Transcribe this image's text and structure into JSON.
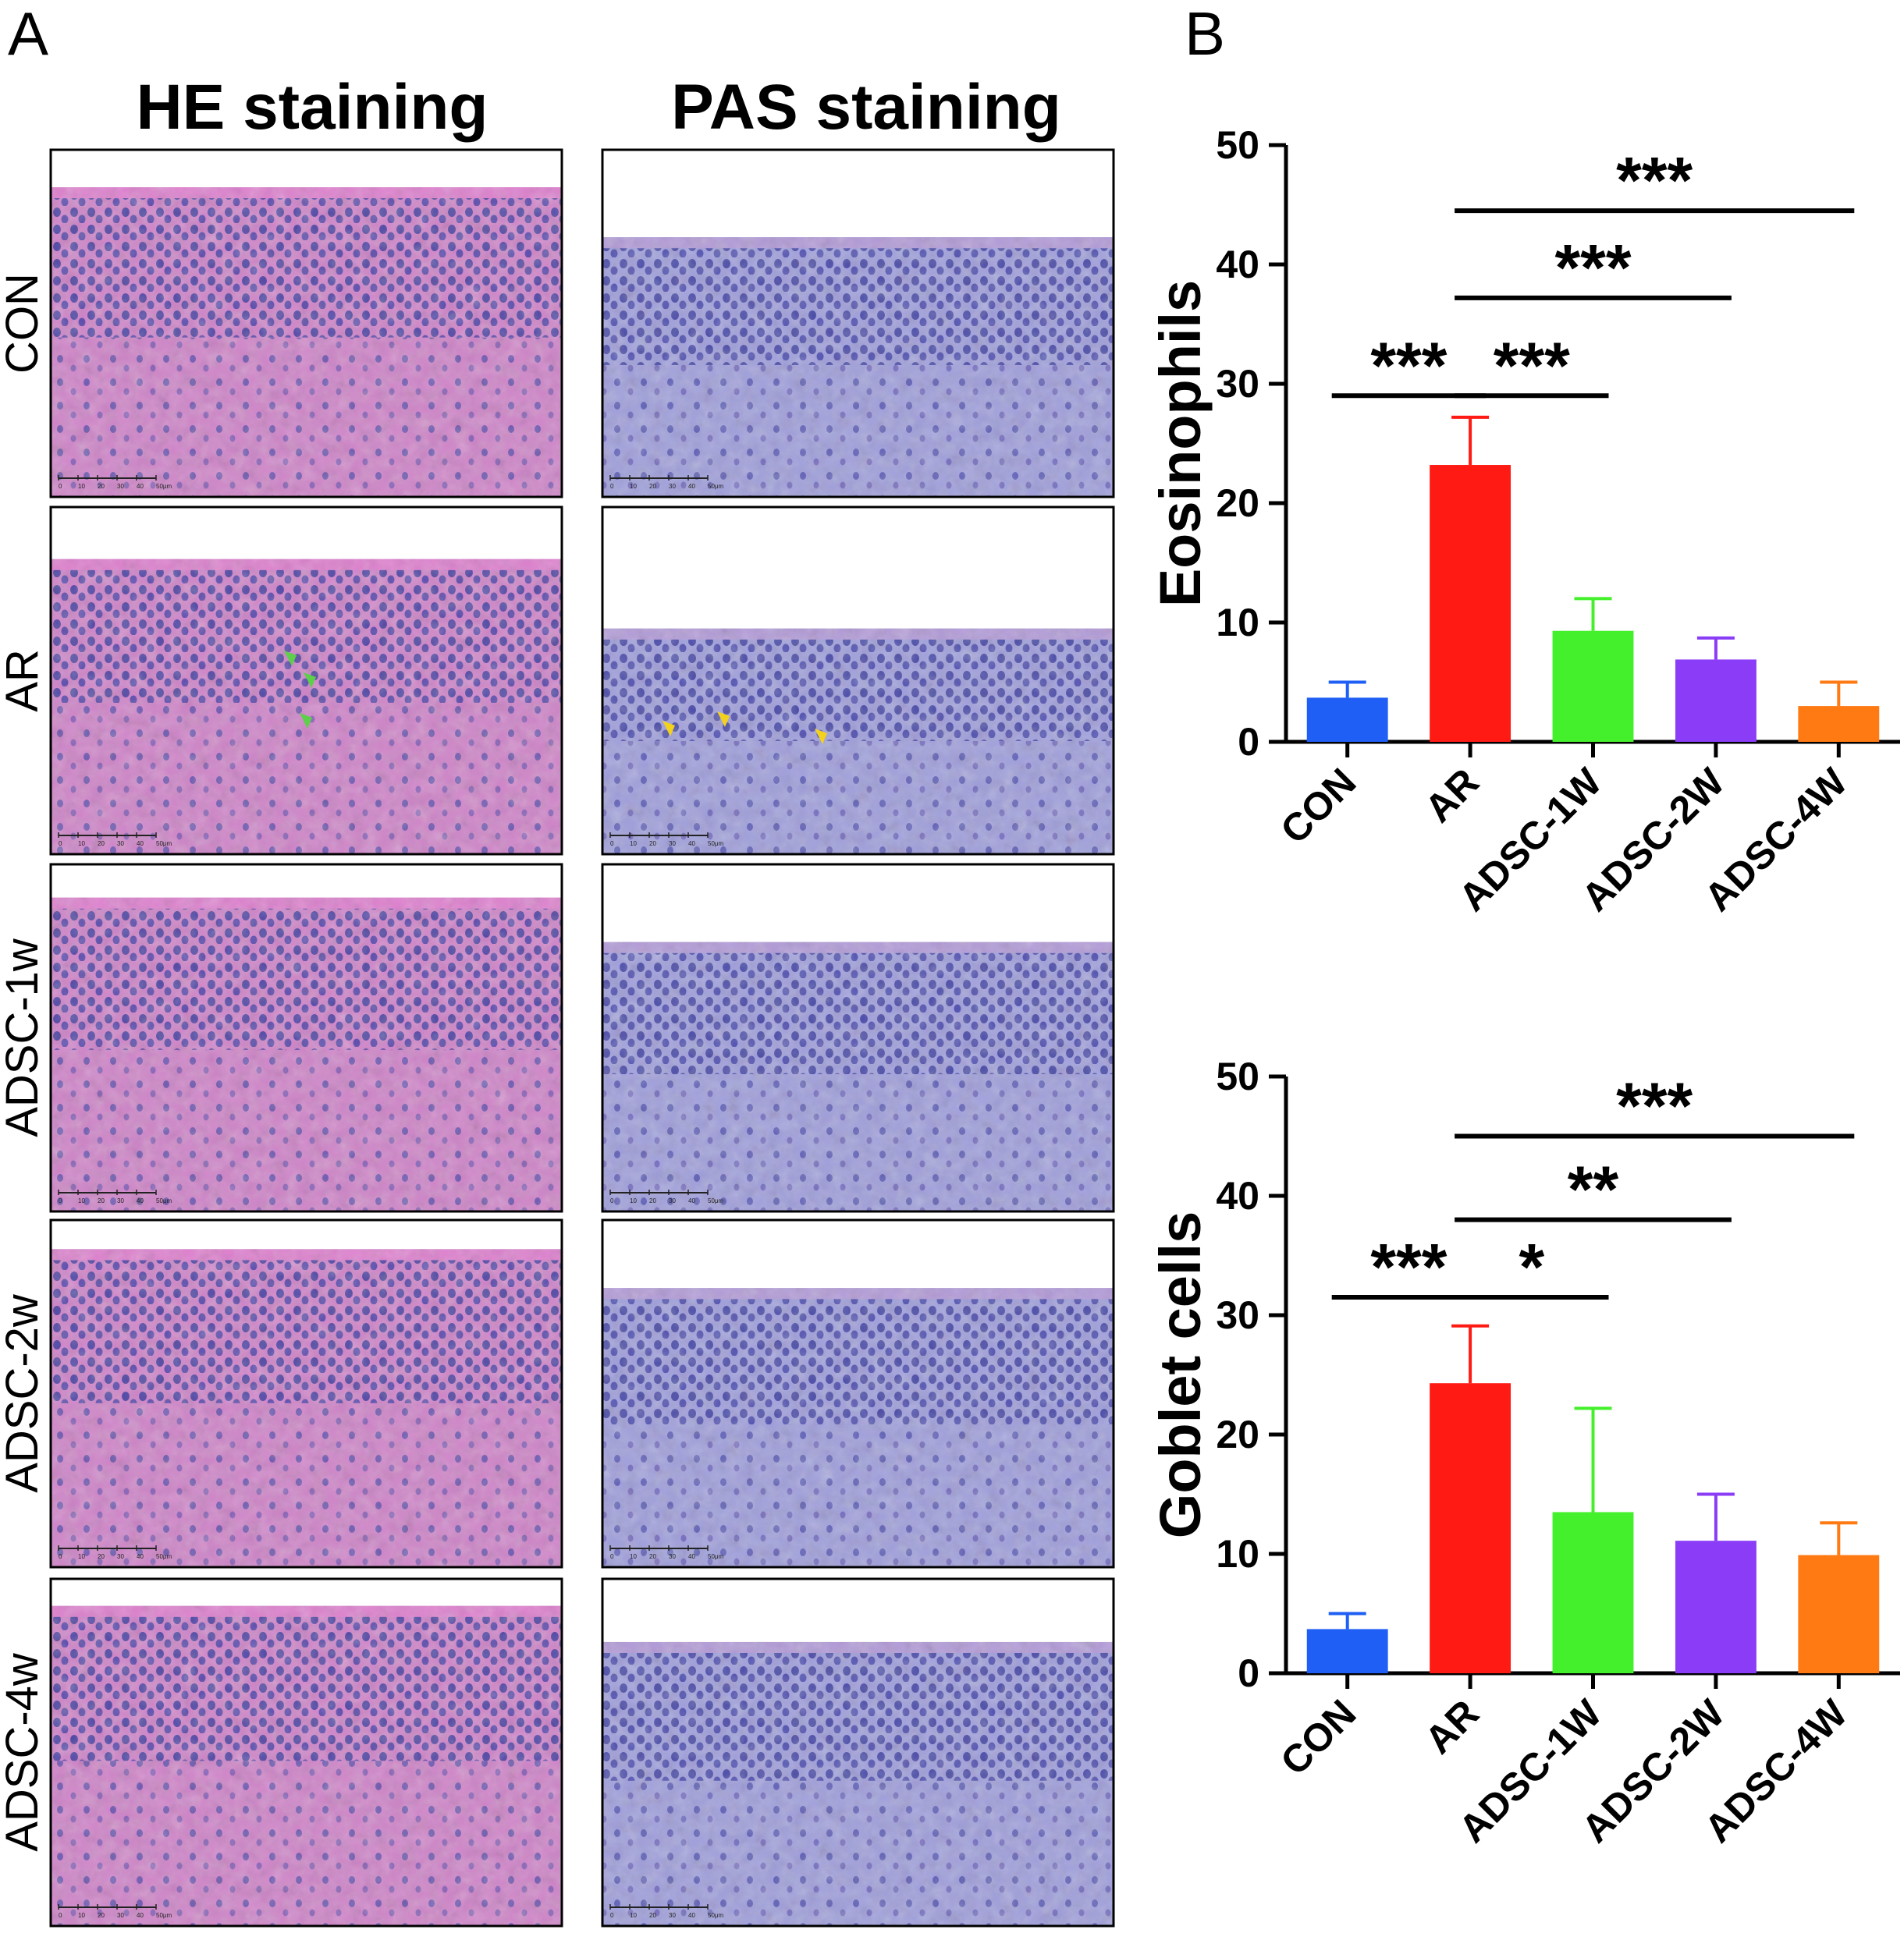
{
  "panel_a": {
    "letter": "A",
    "columns": [
      "HE staining",
      "PAS staining"
    ],
    "rows": [
      "CON",
      "AR",
      "ADSC-1w",
      "ADSC-2w",
      "ADSC-4w"
    ],
    "scale_bar": {
      "ticks": [
        "0",
        "10",
        "20",
        "30",
        "40",
        "50μm"
      ]
    },
    "colors": {
      "he_stain": "#c86fc0",
      "pas_stain": "#8f8ed6",
      "nuclei": "#3b3ca0",
      "he_arrow": "#5ecf4a",
      "pas_arrow": "#f2d21c"
    }
  },
  "panel_b": {
    "letter": "B",
    "colors": [
      "#1f5ff5",
      "#ff1a14",
      "#44f02b",
      "#8a3cf7",
      "#ff7a12"
    ]
  },
  "chart_data": [
    {
      "type": "bar",
      "title": "",
      "ylabel": "Eosinophils",
      "xlabel": "",
      "ylim": [
        0,
        50
      ],
      "yticks": [
        "0",
        "10",
        "20",
        "30",
        "40",
        "50"
      ],
      "categories": [
        "CON",
        "AR",
        "ADSC-1W",
        "ADSC-2W",
        "ADSC-4W"
      ],
      "values": [
        3.7,
        23.2,
        9.3,
        6.9,
        3.0
      ],
      "errors": [
        1.3,
        4.0,
        2.7,
        1.8,
        2.0
      ],
      "significance": [
        {
          "from": 0,
          "to": 1,
          "label": "***",
          "y": 29
        },
        {
          "from": 1,
          "to": 2,
          "label": "***",
          "y": 29
        },
        {
          "from": 1,
          "to": 3,
          "label": "***",
          "y": 37.2
        },
        {
          "from": 1,
          "to": 4,
          "label": "***",
          "y": 44.5
        }
      ]
    },
    {
      "type": "bar",
      "title": "",
      "ylabel": "Goblet cells",
      "xlabel": "",
      "ylim": [
        0,
        50
      ],
      "yticks": [
        "0",
        "10",
        "20",
        "30",
        "40",
        "50"
      ],
      "categories": [
        "CON",
        "AR",
        "ADSC-1W",
        "ADSC-2W",
        "ADSC-4W"
      ],
      "values": [
        3.7,
        24.3,
        13.5,
        11.1,
        9.9
      ],
      "errors": [
        1.3,
        4.8,
        8.7,
        3.9,
        2.7
      ],
      "significance": [
        {
          "from": 0,
          "to": 1,
          "label": "***",
          "y": 31.5
        },
        {
          "from": 1,
          "to": 2,
          "label": "*",
          "y": 31.5
        },
        {
          "from": 1,
          "to": 3,
          "label": "**",
          "y": 38
        },
        {
          "from": 1,
          "to": 4,
          "label": "***",
          "y": 45
        }
      ]
    }
  ]
}
